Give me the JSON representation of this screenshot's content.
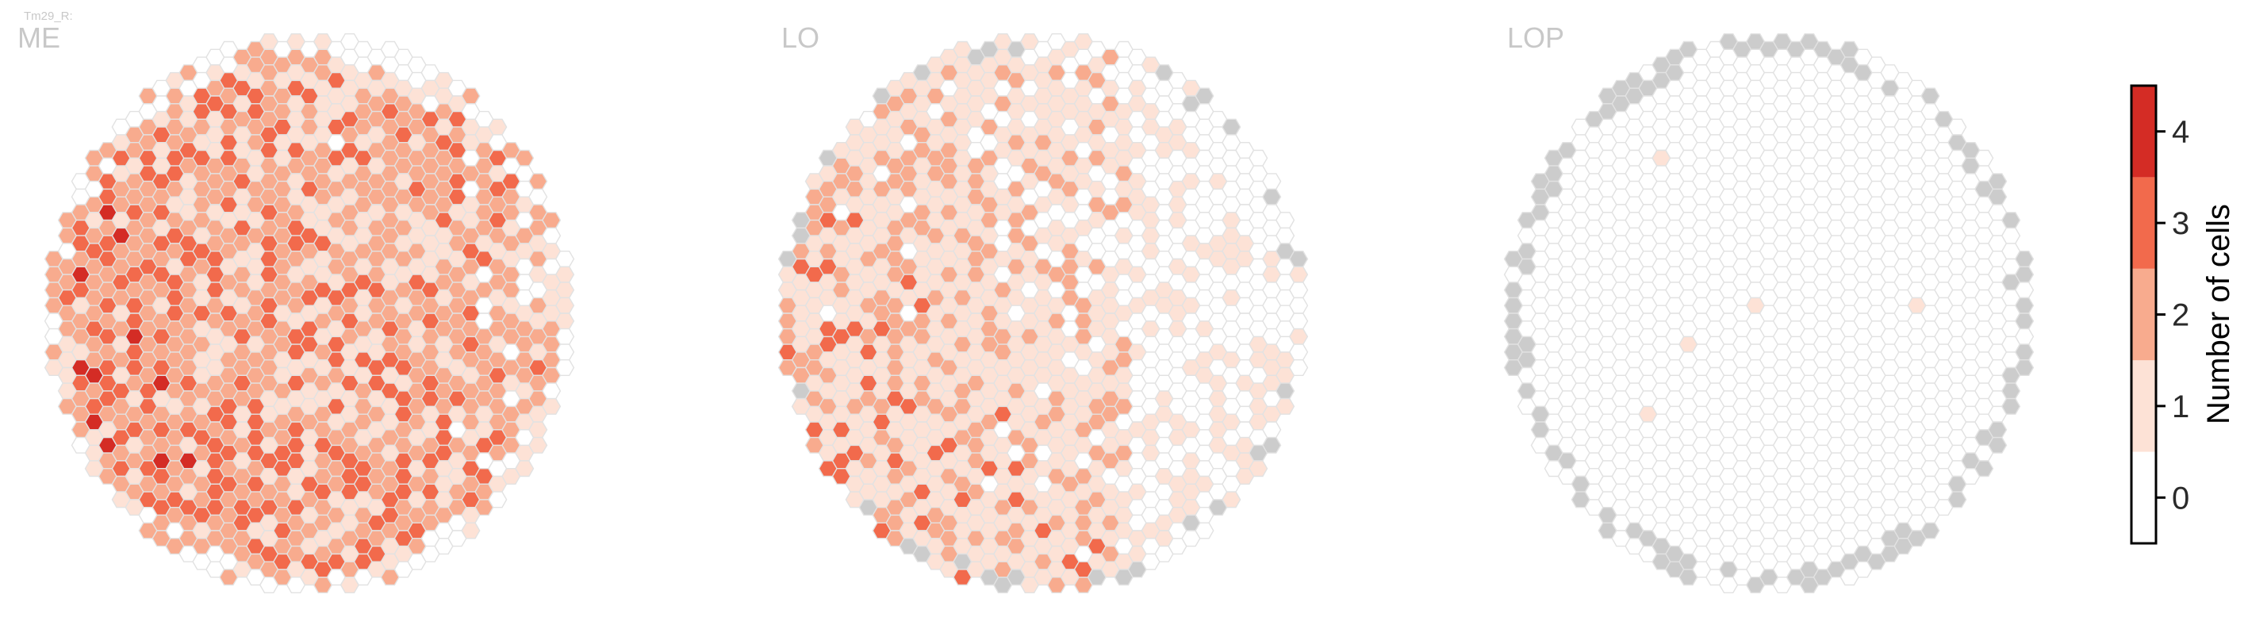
{
  "figure_label": "Tm29_R:",
  "palette": {
    "0": "#ffffff",
    "1": "#fde2d6",
    "2": "#f8ab8e",
    "3": "#f26a4c",
    "4": "#d42c25",
    "missing": "#cccccc",
    "outline": "#e2e2e2"
  },
  "chart_data": [
    {
      "type": "heatmap",
      "title": "ME",
      "value_distribution": {
        "0": 0.1,
        "1": 0.24,
        "2": 0.33,
        "3": 0.25,
        "4": 0.08
      },
      "gradient": "higher counts toward the left / lower-left, fading toward the right",
      "missing_edge_columns": "none"
    },
    {
      "type": "heatmap",
      "title": "LO",
      "value_distribution": {
        "0": 0.26,
        "1": 0.4,
        "2": 0.22,
        "3": 0.1,
        "4": 0.02
      },
      "gradient": "higher counts toward the lower-left, mostly empty toward the right",
      "missing_edge_columns": "scattered grey columns on the outer rim"
    },
    {
      "type": "heatmap",
      "title": "LOP",
      "value_distribution": {
        "0": 0.99,
        "1": 0.01,
        "2": 0.0,
        "3": 0.0,
        "4": 0.0
      },
      "nonzero_cells": 5,
      "gradient": "almost all columns empty; five columns with 1 cell",
      "missing_edge_columns": "grey columns around most of the outer rim"
    }
  ],
  "colorbar": {
    "label": "Number of cells",
    "ticks": [
      "0",
      "1",
      "2",
      "3",
      "4"
    ],
    "range": [
      -0.5,
      4.5
    ],
    "colors": [
      "#ffffff",
      "#fde2d6",
      "#f8ab8e",
      "#f26a4c",
      "#d42c25"
    ]
  }
}
